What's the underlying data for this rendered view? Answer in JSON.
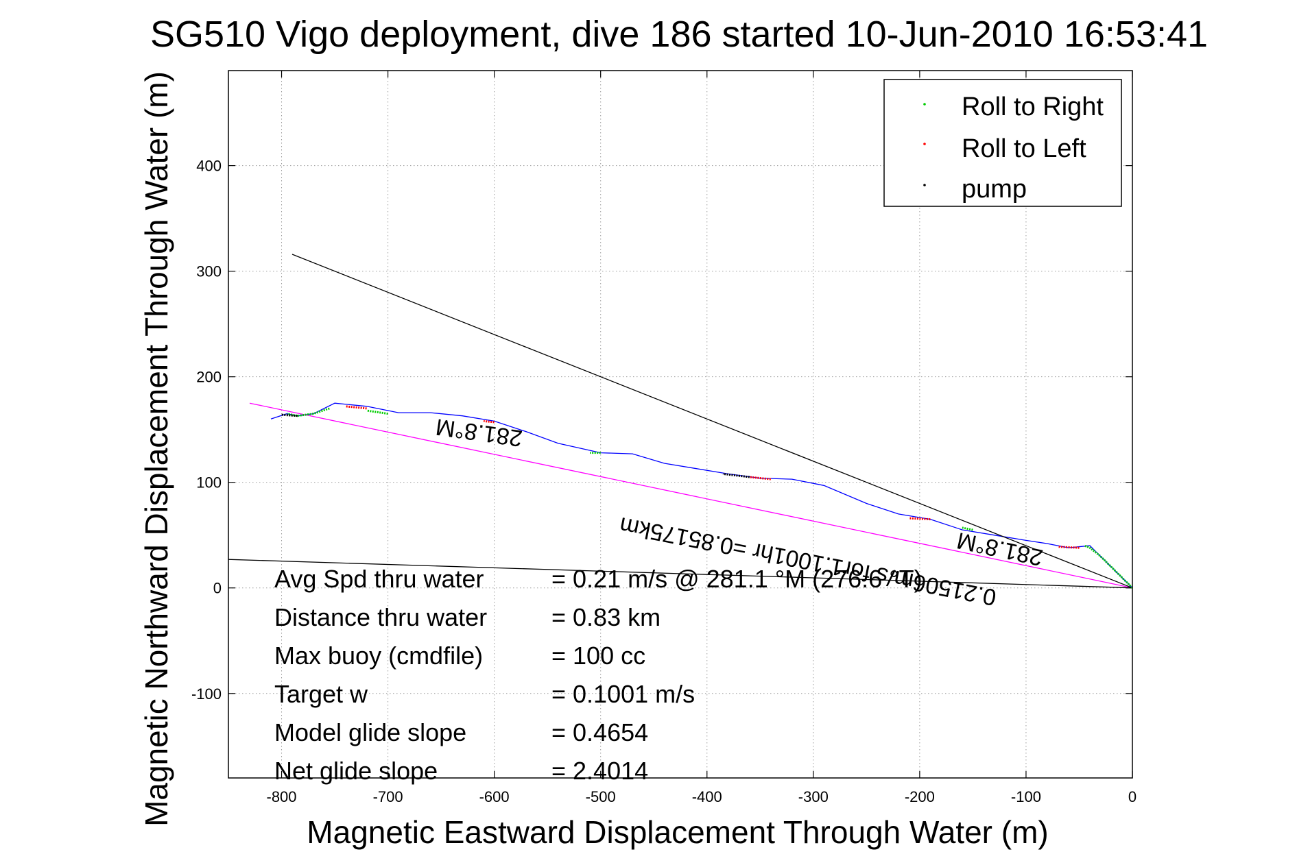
{
  "chart_data": {
    "type": "line",
    "title": "SG510 Vigo deployment, dive 186 started 10-Jun-2010 16:53:41",
    "xlabel": "Magnetic Eastward Displacement Through Water (m)",
    "ylabel": "Magnetic Northward Displacement Through Water (m)",
    "xlim": [
      -850,
      0
    ],
    "ylim": [
      -180,
      490
    ],
    "xticks": [
      -800,
      -700,
      -600,
      -500,
      -400,
      -300,
      -200,
      -100,
      0
    ],
    "yticks": [
      -100,
      0,
      100,
      200,
      300,
      400
    ],
    "grid": true,
    "legend": {
      "placement": "top-right",
      "entries": [
        {
          "label": "Roll to Right",
          "color": "#00cc00"
        },
        {
          "label": "Roll to Left",
          "color": "#ff0000"
        },
        {
          "label": "pump",
          "color": "#000000"
        }
      ]
    },
    "series": [
      {
        "color": "#0000ff",
        "x": [
          0,
          -20,
          -40,
          -60,
          -80,
          -100,
          -130,
          -160,
          -190,
          -220,
          -250,
          -290,
          -320,
          -350,
          -380,
          -410,
          -440,
          -470,
          -500,
          -540,
          -570,
          -600,
          -630,
          -660,
          -690,
          -720,
          -750,
          -770,
          -785,
          -795,
          -810
        ],
        "y": [
          0,
          20,
          40,
          38,
          42,
          45,
          50,
          55,
          65,
          70,
          80,
          97,
          103,
          104,
          108,
          113,
          118,
          127,
          128,
          137,
          148,
          158,
          163,
          166,
          166,
          172,
          175,
          165,
          163,
          165,
          160
        ]
      },
      {
        "color": "#ff00ff",
        "x": [
          0,
          -830
        ],
        "y": [
          0,
          175
        ]
      },
      {
        "color": "#000000",
        "x": [
          0,
          -790
        ],
        "y": [
          0,
          316
        ]
      },
      {
        "color": "#000000",
        "x": [
          0,
          -850
        ],
        "y": [
          0,
          27
        ]
      }
    ],
    "markers": {
      "roll_right": [
        {
          "x": [
            0,
            -10,
            -20,
            -30,
            -40,
            -45
          ],
          "y": [
            0,
            10,
            20,
            30,
            38,
            40
          ]
        },
        {
          "x": [
            -150,
            -160
          ],
          "y": [
            55,
            57
          ]
        },
        {
          "x": [
            -500,
            -510
          ],
          "y": [
            128,
            128
          ]
        },
        {
          "x": [
            -700,
            -720
          ],
          "y": [
            165,
            168
          ]
        },
        {
          "x": [
            -755,
            -770,
            -785,
            -795
          ],
          "y": [
            170,
            165,
            163,
            165
          ]
        }
      ],
      "roll_left": [
        {
          "x": [
            -50,
            -70
          ],
          "y": [
            38,
            39
          ]
        },
        {
          "x": [
            -190,
            -210
          ],
          "y": [
            65,
            66
          ]
        },
        {
          "x": [
            -340,
            -360
          ],
          "y": [
            103,
            105
          ]
        },
        {
          "x": [
            -600,
            -610
          ],
          "y": [
            157,
            158
          ]
        },
        {
          "x": [
            -720,
            -740
          ],
          "y": [
            170,
            172
          ]
        }
      ],
      "pump": [
        {
          "x": [
            -360,
            -385
          ],
          "y": [
            105,
            108
          ]
        },
        {
          "x": [
            -785,
            -800
          ],
          "y": [
            163,
            164
          ]
        }
      ]
    },
    "annotations": {
      "heading_label_1": "281.8°M",
      "heading_label_2": "281.8°M",
      "model_line_label": "0.21506m/s for1.1001hr =0.85175km",
      "stats": [
        {
          "label": "Avg Spd thru water",
          "value": "=  0.21 m/s @ 281.1 °M (276.6 °T)"
        },
        {
          "label": "Distance thru water",
          "value": "=  0.83 km"
        },
        {
          "label": "Max buoy (cmdfile)",
          "value": "= 100 cc"
        },
        {
          "label": "Target w",
          "value": "= 0.1001 m/s"
        },
        {
          "label": "Model glide slope",
          "value": "= 0.4654"
        },
        {
          "label": "Net glide slope",
          "value": "= 2.4014"
        }
      ]
    }
  }
}
